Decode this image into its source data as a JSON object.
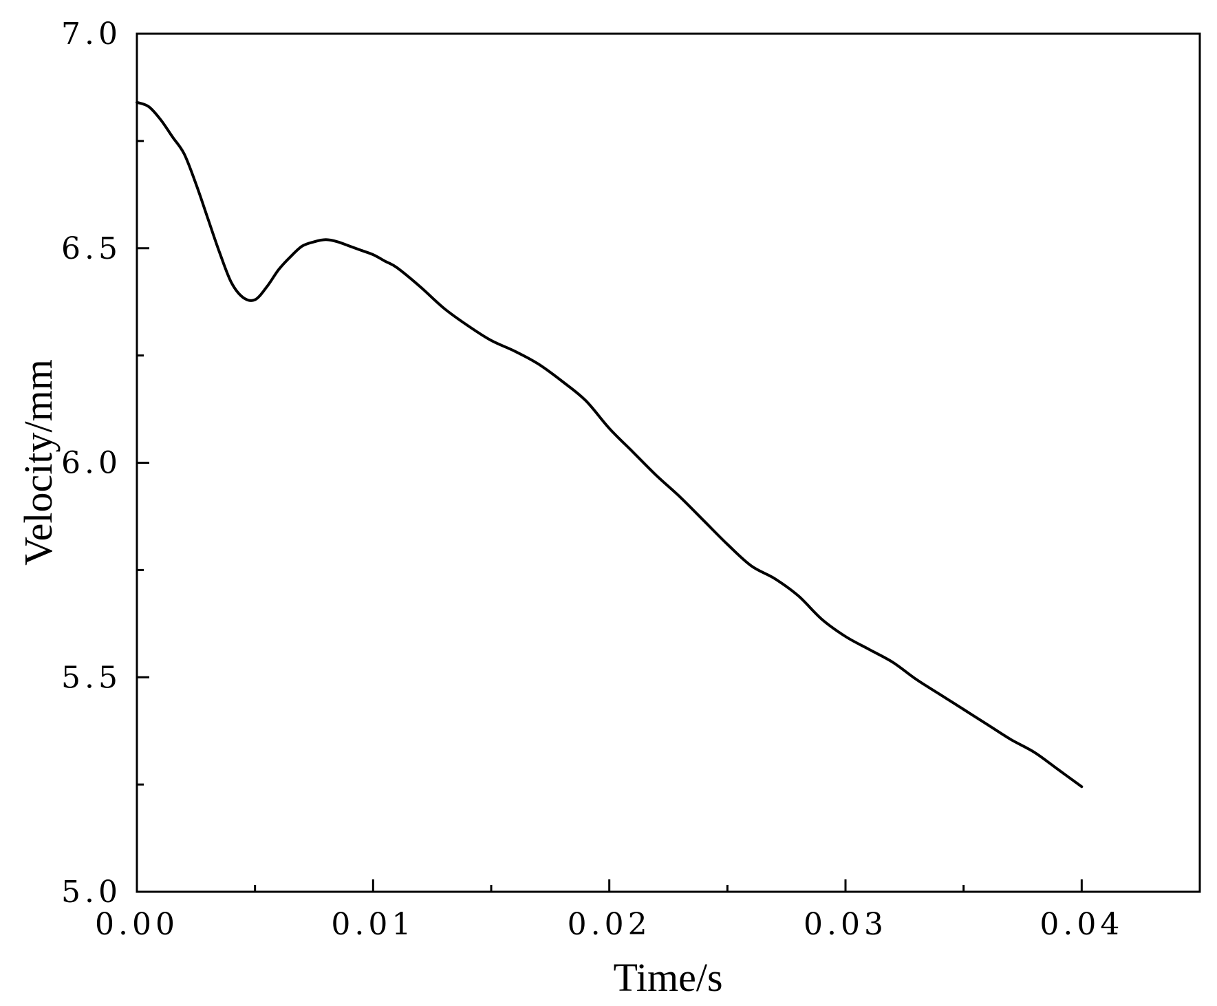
{
  "chart_data": {
    "type": "line",
    "title": "",
    "xlabel": "Time/s",
    "ylabel": "Velocity/mm",
    "xlim": [
      0,
      0.045
    ],
    "ylim": [
      5.0,
      7.0
    ],
    "x_ticks": [
      {
        "value": 0.0,
        "label": "0.00"
      },
      {
        "value": 0.01,
        "label": "0.01"
      },
      {
        "value": 0.02,
        "label": "0.02"
      },
      {
        "value": 0.03,
        "label": "0.03"
      },
      {
        "value": 0.04,
        "label": "0.04"
      }
    ],
    "x_minor_ticks": [
      0.005,
      0.015,
      0.025,
      0.035
    ],
    "y_ticks": [
      {
        "value": 5.0,
        "label": "5.0"
      },
      {
        "value": 5.5,
        "label": "5.5"
      },
      {
        "value": 6.0,
        "label": "6.0"
      },
      {
        "value": 6.5,
        "label": "6.5"
      },
      {
        "value": 7.0,
        "label": "7.0"
      }
    ],
    "y_minor_ticks": [
      5.25,
      5.75,
      6.25,
      6.75
    ],
    "grid": false,
    "legend": "none",
    "line_color": "#000000",
    "series": [
      {
        "x": [
          0.0,
          0.0005,
          0.001,
          0.0015,
          0.002,
          0.0025,
          0.003,
          0.0035,
          0.004,
          0.0045,
          0.005,
          0.0055,
          0.006,
          0.0065,
          0.007,
          0.0075,
          0.008,
          0.0085,
          0.009,
          0.0095,
          0.01,
          0.0105,
          0.011,
          0.012,
          0.013,
          0.014,
          0.015,
          0.016,
          0.017,
          0.018,
          0.019,
          0.02,
          0.021,
          0.022,
          0.023,
          0.024,
          0.025,
          0.026,
          0.027,
          0.028,
          0.029,
          0.03,
          0.031,
          0.032,
          0.033,
          0.034,
          0.035,
          0.036,
          0.037,
          0.038,
          0.039,
          0.04
        ],
        "y": [
          6.84,
          6.83,
          6.8,
          6.76,
          6.72,
          6.65,
          6.57,
          6.49,
          6.42,
          6.385,
          6.38,
          6.41,
          6.45,
          6.48,
          6.505,
          6.515,
          6.52,
          6.515,
          6.505,
          6.495,
          6.485,
          6.47,
          6.455,
          6.41,
          6.36,
          6.32,
          6.285,
          6.26,
          6.23,
          6.19,
          6.145,
          6.08,
          6.025,
          5.97,
          5.92,
          5.865,
          5.81,
          5.76,
          5.73,
          5.69,
          5.635,
          5.595,
          5.565,
          5.535,
          5.495,
          5.46,
          5.425,
          5.39,
          5.355,
          5.325,
          5.285,
          5.245
        ]
      }
    ]
  }
}
